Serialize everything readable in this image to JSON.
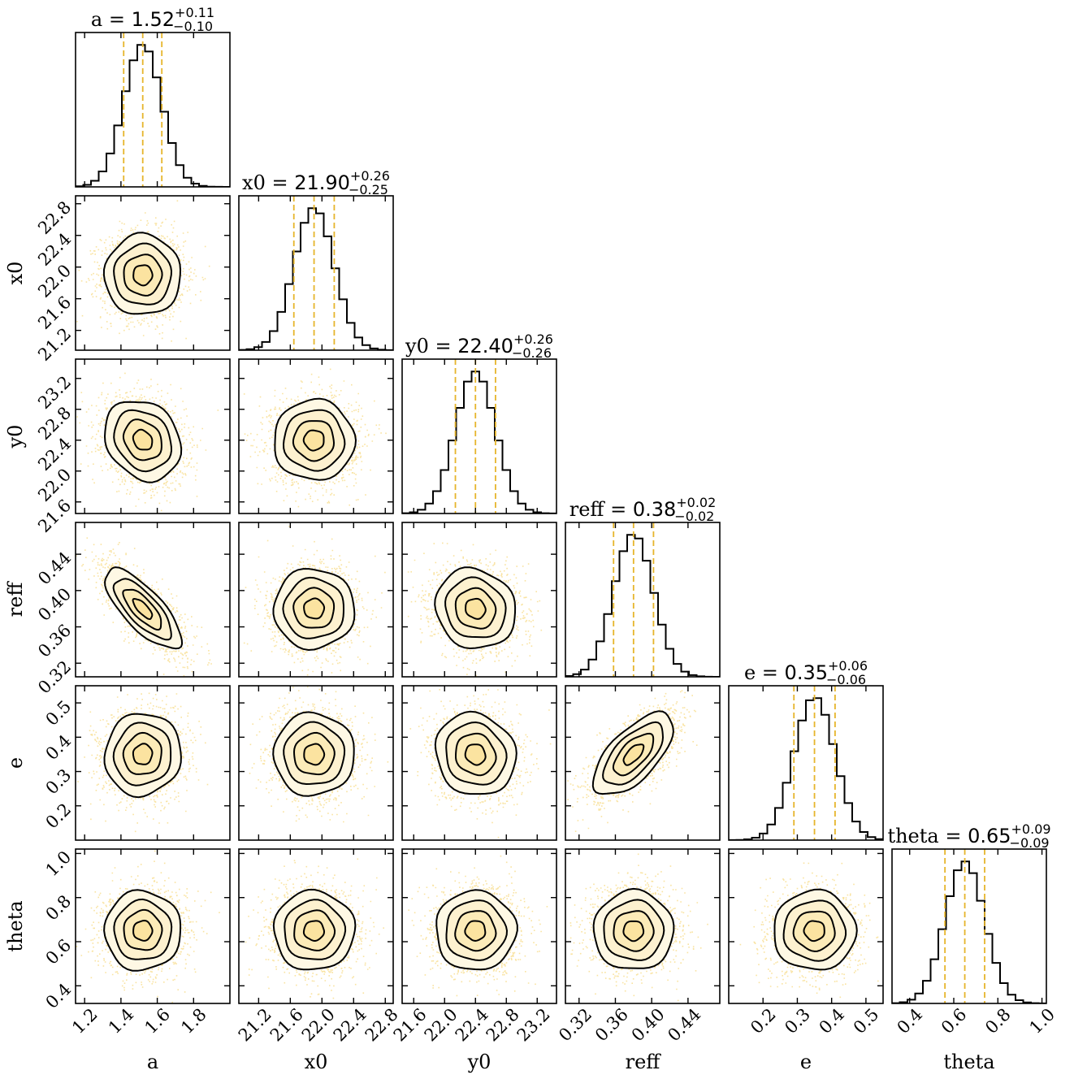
{
  "chart_data": {
    "type": "corner",
    "parameters": [
      {
        "name": "a",
        "median": "1.52",
        "plus": "+0.11",
        "minus": "−0.10",
        "center": 1.52,
        "sigma": 0.105,
        "range": [
          1.15,
          2.0
        ],
        "ticks": [
          "1.2",
          "1.4",
          "1.6",
          "1.8"
        ],
        "tick_values": [
          1.2,
          1.4,
          1.6,
          1.8
        ]
      },
      {
        "name": "x0",
        "median": "21.90",
        "plus": "+0.26",
        "minus": "−0.25",
        "center": 21.9,
        "sigma": 0.255,
        "range": [
          20.95,
          22.9
        ],
        "ticks": [
          "21.2",
          "21.6",
          "22.0",
          "22.4",
          "22.8"
        ],
        "tick_values": [
          21.2,
          21.6,
          22.0,
          22.4,
          22.8
        ]
      },
      {
        "name": "y0",
        "median": "22.40",
        "plus": "+0.26",
        "minus": "−0.26",
        "center": 22.4,
        "sigma": 0.26,
        "range": [
          21.45,
          23.45
        ],
        "ticks": [
          "21.6",
          "22.0",
          "22.4",
          "22.8",
          "23.2"
        ],
        "tick_values": [
          21.6,
          22.0,
          22.4,
          22.8,
          23.2
        ]
      },
      {
        "name": "reff",
        "median": "0.38",
        "plus": "+0.02",
        "minus": "−0.02",
        "center": 0.38,
        "sigma": 0.022,
        "range": [
          0.305,
          0.475
        ],
        "ticks": [
          "0.32",
          "0.36",
          "0.40",
          "0.44"
        ],
        "tick_values": [
          0.32,
          0.36,
          0.4,
          0.44
        ]
      },
      {
        "name": "e",
        "median": "0.35",
        "plus": "+0.06",
        "minus": "−0.06",
        "center": 0.35,
        "sigma": 0.06,
        "range": [
          0.1,
          0.55
        ],
        "ticks": [
          "0.2",
          "0.3",
          "0.4",
          "0.5"
        ],
        "tick_values": [
          0.2,
          0.3,
          0.4,
          0.5
        ]
      },
      {
        "name": "theta",
        "median": "0.65",
        "plus": "+0.09",
        "minus": "−0.09",
        "center": 0.65,
        "sigma": 0.09,
        "range": [
          0.32,
          1.02
        ],
        "ticks": [
          "0.4",
          "0.6",
          "0.8",
          "1.0"
        ],
        "tick_values": [
          0.4,
          0.6,
          0.8,
          1.0
        ]
      }
    ],
    "correlations": {
      "a-x0": 0.0,
      "a-y0": -0.2,
      "a-reff": -0.75,
      "a-e": 0.05,
      "a-theta": 0.0,
      "x0-y0": 0.0,
      "x0-reff": 0.0,
      "x0-e": 0.0,
      "x0-theta": 0.0,
      "y0-reff": -0.1,
      "y0-e": -0.1,
      "y0-theta": 0.0,
      "reff-e": 0.65,
      "reff-theta": 0.0,
      "e-theta": 0.0
    },
    "contour_levels_sigma": [
      0.5,
      1.0,
      1.5,
      2.0
    ],
    "quantile_lines": [
      0.16,
      0.5,
      0.84
    ],
    "colors": {
      "points": "#f2c12e",
      "contour": "#000000",
      "quantiles": "#e6b52c",
      "fill": "#fdf3d2"
    }
  }
}
